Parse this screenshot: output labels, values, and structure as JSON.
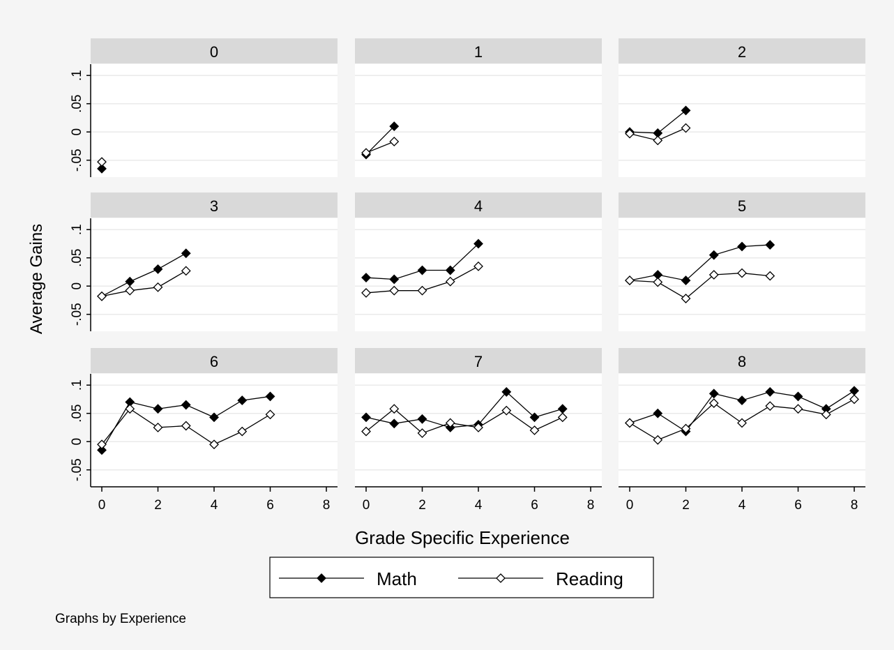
{
  "chart_data": {
    "type": "line",
    "layout": "small-multiples",
    "ylabel": "Average Gains",
    "xlabel": "Grade Specific Experience",
    "note": "Graphs by Experience",
    "xlim": [
      0,
      8
    ],
    "ylim": [
      -0.08,
      0.12
    ],
    "x_ticks": [
      0,
      2,
      4,
      6,
      8
    ],
    "y_ticks": [
      -0.05,
      0,
      0.05,
      0.1
    ],
    "y_tick_labels": [
      "-.05",
      "0",
      ".05",
      ".1"
    ],
    "grid": true,
    "legend_position": "bottom",
    "legend": [
      {
        "label": "Math",
        "marker": "filled-diamond",
        "color": "#000000"
      },
      {
        "label": "Reading",
        "marker": "hollow-diamond",
        "color": "#000000"
      }
    ],
    "colors": {
      "background": "#f5f5f5",
      "panel_header": "#d9d9d9",
      "grid": "#eaeaea",
      "line": "#000000"
    },
    "panels": [
      {
        "title": "0",
        "series": [
          {
            "name": "Math",
            "x": [
              0
            ],
            "y": [
              -0.065
            ]
          },
          {
            "name": "Reading",
            "x": [
              0
            ],
            "y": [
              -0.053
            ]
          }
        ]
      },
      {
        "title": "1",
        "series": [
          {
            "name": "Math",
            "x": [
              0,
              1
            ],
            "y": [
              -0.04,
              0.01
            ]
          },
          {
            "name": "Reading",
            "x": [
              0,
              1
            ],
            "y": [
              -0.037,
              -0.017
            ]
          }
        ]
      },
      {
        "title": "2",
        "series": [
          {
            "name": "Math",
            "x": [
              0,
              1,
              2
            ],
            "y": [
              0.0,
              -0.002,
              0.038
            ]
          },
          {
            "name": "Reading",
            "x": [
              0,
              1,
              2
            ],
            "y": [
              -0.003,
              -0.015,
              0.007
            ]
          }
        ]
      },
      {
        "title": "3",
        "series": [
          {
            "name": "Math",
            "x": [
              0,
              1,
              2,
              3
            ],
            "y": [
              -0.018,
              0.008,
              0.03,
              0.058
            ]
          },
          {
            "name": "Reading",
            "x": [
              0,
              1,
              2,
              3
            ],
            "y": [
              -0.018,
              -0.008,
              -0.002,
              0.027
            ]
          }
        ]
      },
      {
        "title": "4",
        "series": [
          {
            "name": "Math",
            "x": [
              0,
              1,
              2,
              3,
              4
            ],
            "y": [
              0.015,
              0.012,
              0.028,
              0.028,
              0.075
            ]
          },
          {
            "name": "Reading",
            "x": [
              0,
              1,
              2,
              3,
              4
            ],
            "y": [
              -0.012,
              -0.008,
              -0.008,
              0.008,
              0.035
            ]
          }
        ]
      },
      {
        "title": "5",
        "series": [
          {
            "name": "Math",
            "x": [
              0,
              1,
              2,
              3,
              4,
              5
            ],
            "y": [
              0.01,
              0.02,
              0.01,
              0.055,
              0.07,
              0.073
            ]
          },
          {
            "name": "Reading",
            "x": [
              0,
              1,
              2,
              3,
              4,
              5
            ],
            "y": [
              0.01,
              0.007,
              -0.022,
              0.02,
              0.023,
              0.018
            ]
          }
        ]
      },
      {
        "title": "6",
        "series": [
          {
            "name": "Math",
            "x": [
              0,
              1,
              2,
              3,
              4,
              5,
              6
            ],
            "y": [
              -0.015,
              0.07,
              0.058,
              0.065,
              0.043,
              0.073,
              0.08
            ]
          },
          {
            "name": "Reading",
            "x": [
              0,
              1,
              2,
              3,
              4,
              5,
              6
            ],
            "y": [
              -0.005,
              0.058,
              0.025,
              0.028,
              -0.005,
              0.018,
              0.048
            ]
          }
        ]
      },
      {
        "title": "7",
        "series": [
          {
            "name": "Math",
            "x": [
              0,
              1,
              2,
              3,
              4,
              5,
              6,
              7
            ],
            "y": [
              0.043,
              0.032,
              0.04,
              0.025,
              0.03,
              0.088,
              0.043,
              0.058
            ]
          },
          {
            "name": "Reading",
            "x": [
              0,
              1,
              2,
              3,
              4,
              5,
              6,
              7
            ],
            "y": [
              0.018,
              0.058,
              0.015,
              0.033,
              0.025,
              0.055,
              0.02,
              0.043
            ]
          }
        ]
      },
      {
        "title": "8",
        "series": [
          {
            "name": "Math",
            "x": [
              0,
              1,
              2,
              3,
              4,
              5,
              6,
              7,
              8
            ],
            "y": [
              0.033,
              0.05,
              0.018,
              0.085,
              0.073,
              0.088,
              0.08,
              0.058,
              0.09
            ]
          },
          {
            "name": "Reading",
            "x": [
              0,
              1,
              2,
              3,
              4,
              5,
              6,
              7,
              8
            ],
            "y": [
              0.033,
              0.003,
              0.023,
              0.068,
              0.033,
              0.063,
              0.058,
              0.048,
              0.075
            ]
          }
        ]
      }
    ]
  }
}
